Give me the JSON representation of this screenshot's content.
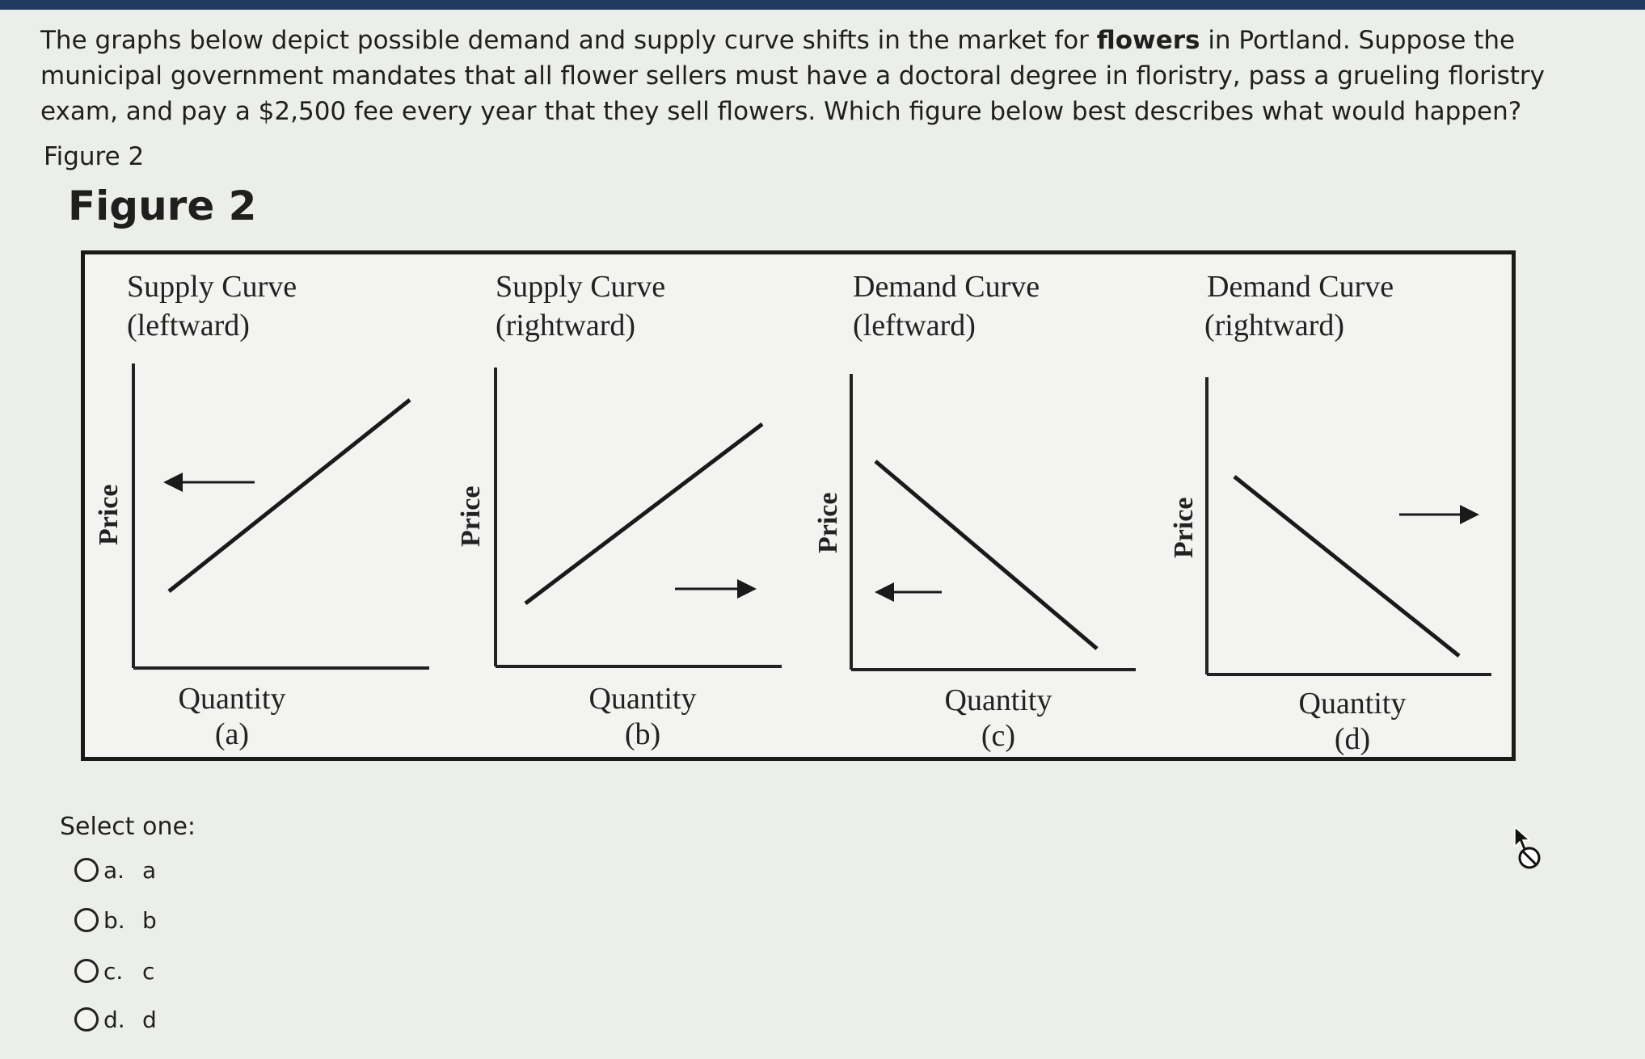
{
  "question": {
    "part1": "The graphs below depict possible demand and supply curve shifts in the market for ",
    "bold": "flowers",
    "part2": " in Portland.  Suppose the municipal government mandates that all flower sellers must have a doctoral degree in floristry, pass a grueling floristry exam, and pay a $2,500 fee every year that they sell flowers.  Which figure below best describes what would happen?"
  },
  "figure_caption": "Figure 2",
  "figure_title": "Figure 2",
  "panels": [
    {
      "title1": "Supply Curve",
      "title2": "(leftward)",
      "ylabel": "Price",
      "xlabel": "Quantity",
      "letter": "(a)",
      "curve": "supply",
      "shift": "left"
    },
    {
      "title1": "Supply Curve",
      "title2": "(rightward)",
      "ylabel": "Price",
      "xlabel": "Quantity",
      "letter": "(b)",
      "curve": "supply",
      "shift": "right"
    },
    {
      "title1": "Demand Curve",
      "title2": "(leftward)",
      "ylabel": "Price",
      "xlabel": "Quantity",
      "letter": "(c)",
      "curve": "demand",
      "shift": "left"
    },
    {
      "title1": "Demand Curve",
      "title2": "(rightward)",
      "ylabel": "Price",
      "xlabel": "Quantity",
      "letter": "(d)",
      "curve": "demand",
      "shift": "right"
    }
  ],
  "select_label": "Select one:",
  "options": [
    {
      "letter": "a.",
      "text": "a"
    },
    {
      "letter": "b.",
      "text": "b"
    },
    {
      "letter": "c.",
      "text": "c"
    },
    {
      "letter": "d.",
      "text": "d"
    }
  ],
  "icons": {
    "cursor": "cursor-arrow-icon",
    "not-allowed": "not-allowed-icon"
  }
}
